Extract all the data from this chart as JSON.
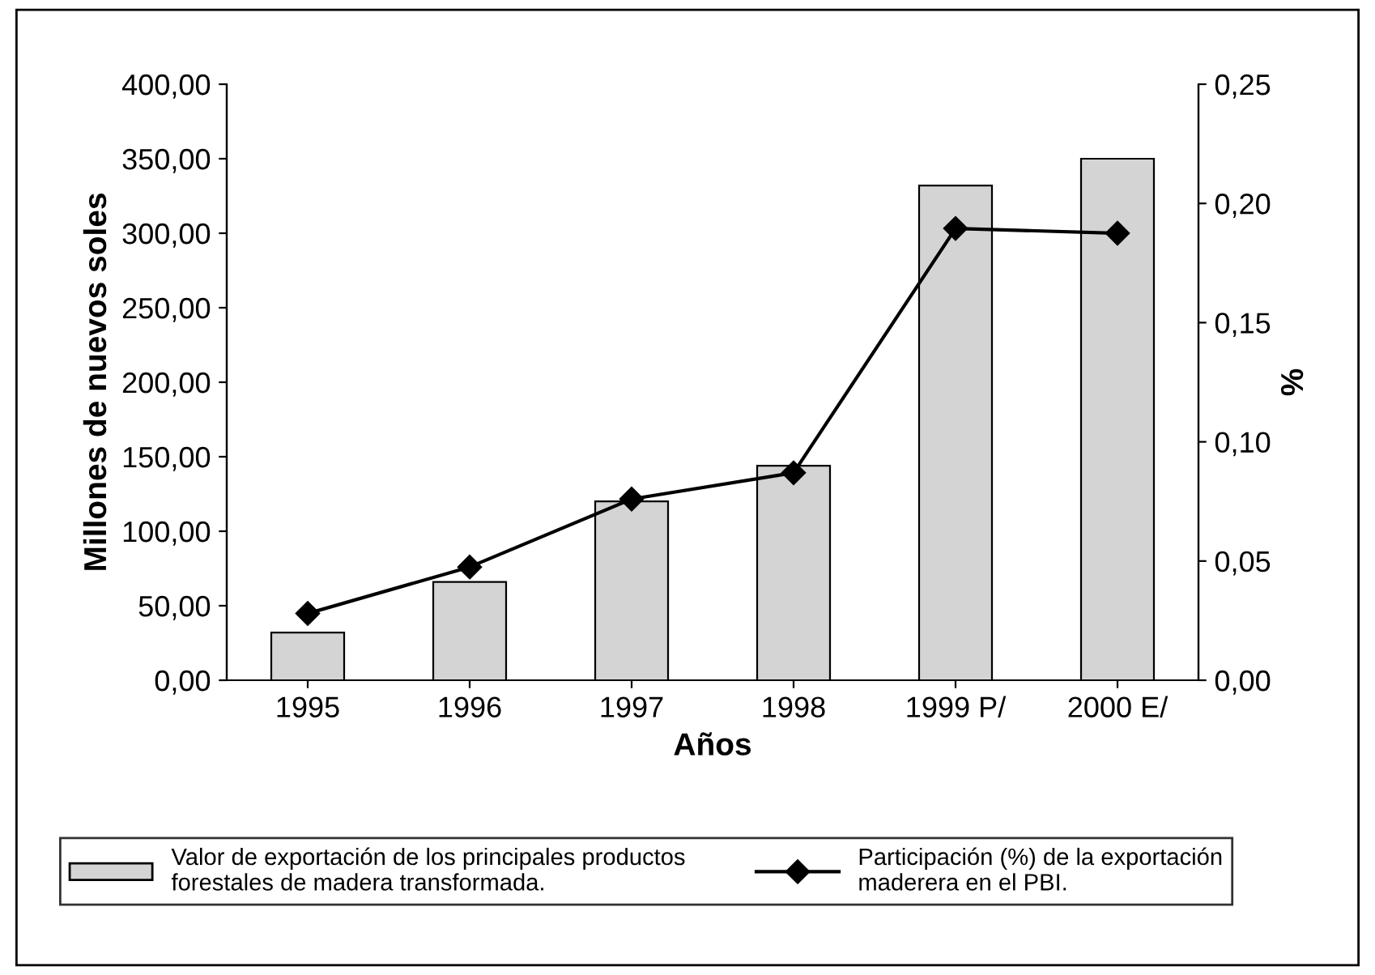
{
  "chart_data": {
    "type": "bar",
    "xlabel": "Años",
    "ylabel": "Millones de nuevos soles",
    "y2label": "%",
    "categories": [
      "1995",
      "1996",
      "1997",
      "1998",
      "1999 P/",
      "2000 E/"
    ],
    "series": [
      {
        "name": "Valor de exportación de los principales productos\nforestales de madera transformada.",
        "color": "#d4d4d4",
        "values": [
          32,
          66,
          120,
          144,
          332,
          350
        ]
      },
      {
        "name": "Participación (%) de la exportación\nmaderera en el PBI.",
        "type": "line",
        "axis": "y2",
        "color": "#000000",
        "marker": "diamond",
        "values": [
          0.028,
          0.0475,
          0.076,
          0.087,
          0.1895,
          0.1875
        ]
      }
    ],
    "ylim": [
      0,
      400
    ],
    "yticks": [
      {
        "value": 0,
        "label": "0,00"
      },
      {
        "value": 50,
        "label": "50,00"
      },
      {
        "value": 100,
        "label": "100,00"
      },
      {
        "value": 150,
        "label": "150,00"
      },
      {
        "value": 200,
        "label": "200,00"
      },
      {
        "value": 250,
        "label": "250,00"
      },
      {
        "value": 300,
        "label": "300,00"
      },
      {
        "value": 350,
        "label": "350,00"
      },
      {
        "value": 400,
        "label": "400,00"
      }
    ],
    "y2lim": [
      0,
      0.25
    ],
    "y2ticks": [
      {
        "value": 0,
        "label": "0,00"
      },
      {
        "value": 0.05,
        "label": "0,05"
      },
      {
        "value": 0.1,
        "label": "0,10"
      },
      {
        "value": 0.15,
        "label": "0,15"
      },
      {
        "value": 0.2,
        "label": "0,20"
      },
      {
        "value": 0.25,
        "label": "0,25"
      }
    ],
    "grid": false,
    "legend": "bottom"
  }
}
